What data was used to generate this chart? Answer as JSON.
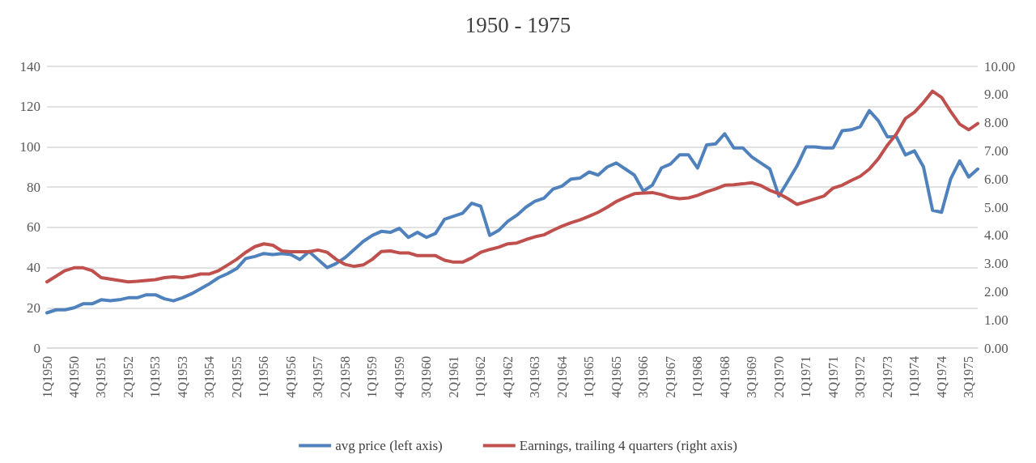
{
  "chart_data": {
    "type": "line",
    "title": "1950 - 1975",
    "categories": [
      "1Q1950",
      null,
      null,
      "4Q1950",
      null,
      null,
      "3Q1951",
      null,
      null,
      "2Q1952",
      null,
      null,
      "1Q1953",
      null,
      null,
      "4Q1953",
      null,
      null,
      "3Q1954",
      null,
      null,
      "2Q1955",
      null,
      null,
      "1Q1956",
      null,
      null,
      "4Q1956",
      null,
      null,
      "3Q1957",
      null,
      null,
      "2Q1958",
      null,
      null,
      "1Q1959",
      null,
      null,
      "4Q1959",
      null,
      null,
      "3Q1960",
      null,
      null,
      "2Q1961",
      null,
      null,
      "1Q1962",
      null,
      null,
      "4Q1962",
      null,
      null,
      "3Q1963",
      null,
      null,
      "2Q1964",
      null,
      null,
      "1Q1965",
      null,
      null,
      "4Q1965",
      null,
      null,
      "3Q1966",
      null,
      null,
      "2Q1967",
      null,
      null,
      "1Q1968",
      null,
      null,
      "4Q1968",
      null,
      null,
      "3Q1969",
      null,
      null,
      "2Q1970",
      null,
      null,
      "1Q1971",
      null,
      null,
      "4Q1971",
      null,
      null,
      "3Q1972",
      null,
      null,
      "2Q1973",
      null,
      null,
      "1Q1974",
      null,
      null,
      "4Q1974",
      null,
      null,
      "3Q1975",
      null
    ],
    "series": [
      {
        "name": "avg price (left axis)",
        "color": "#4f81bd",
        "values": [
          17.5,
          19,
          19,
          20,
          22,
          22,
          24,
          23.5,
          24,
          25,
          25,
          26.5,
          26.5,
          24.5,
          23.5,
          25,
          27,
          29.5,
          32,
          35,
          37,
          39.5,
          44.5,
          45.5,
          47,
          46.5,
          47,
          46.5,
          44,
          48,
          44,
          40,
          42,
          45,
          49,
          53,
          56,
          58,
          57.5,
          59.5,
          55,
          57.5,
          55,
          57,
          64,
          65.5,
          67,
          72,
          70.5,
          56,
          58.5,
          63,
          66,
          70,
          73,
          74.5,
          79,
          80.5,
          84,
          84.5,
          87.5,
          86,
          90,
          92,
          89,
          86,
          78,
          81,
          89.5,
          91.5,
          96,
          96,
          89.5,
          101,
          101.5,
          106.5,
          99.5,
          99.5,
          95,
          92,
          89,
          75.5,
          83,
          90.5,
          100,
          100,
          99.5,
          99.5,
          108,
          108.5,
          110,
          118,
          113,
          105,
          105,
          96,
          98,
          90,
          68.5,
          67.5,
          84,
          93,
          85,
          89
        ]
      },
      {
        "name": "Earnings, trailing 4 quarters (right axis)",
        "color": "#c0504d",
        "axis": "y2",
        "values": [
          2.35,
          2.55,
          2.75,
          2.85,
          2.85,
          2.75,
          2.5,
          2.45,
          2.4,
          2.35,
          2.37,
          2.4,
          2.43,
          2.5,
          2.53,
          2.5,
          2.55,
          2.63,
          2.63,
          2.75,
          2.95,
          3.15,
          3.4,
          3.6,
          3.7,
          3.65,
          3.45,
          3.42,
          3.42,
          3.42,
          3.48,
          3.4,
          3.15,
          2.97,
          2.9,
          2.95,
          3.15,
          3.43,
          3.45,
          3.38,
          3.38,
          3.28,
          3.28,
          3.28,
          3.12,
          3.05,
          3.05,
          3.2,
          3.4,
          3.5,
          3.58,
          3.7,
          3.73,
          3.85,
          3.95,
          4.02,
          4.18,
          4.33,
          4.45,
          4.55,
          4.68,
          4.82,
          5.0,
          5.2,
          5.35,
          5.48,
          5.5,
          5.52,
          5.45,
          5.35,
          5.3,
          5.33,
          5.42,
          5.55,
          5.65,
          5.78,
          5.8,
          5.83,
          5.87,
          5.77,
          5.6,
          5.48,
          5.3,
          5.1,
          5.2,
          5.3,
          5.4,
          5.68,
          5.78,
          5.95,
          6.1,
          6.35,
          6.72,
          7.2,
          7.6,
          8.15,
          8.37,
          8.72,
          9.12,
          8.9,
          8.4,
          7.95,
          7.75,
          7.97
        ]
      }
    ],
    "ylim": [
      0,
      140
    ],
    "yticks": [
      0,
      20,
      40,
      60,
      80,
      100,
      120,
      140
    ],
    "y2lim": [
      0,
      10
    ],
    "y2ticks": [
      {
        "value": 0,
        "label": "0.00"
      },
      {
        "value": 1,
        "label": "1.00"
      },
      {
        "value": 2,
        "label": "2.00"
      },
      {
        "value": 3,
        "label": "3.00"
      },
      {
        "value": 4,
        "label": "4.00"
      },
      {
        "value": 5,
        "label": "5.00"
      },
      {
        "value": 6,
        "label": "6.00"
      },
      {
        "value": 7,
        "label": "7.00"
      },
      {
        "value": 8,
        "label": "8.00"
      },
      {
        "value": 9,
        "label": "9.00"
      },
      {
        "value": 10,
        "label": "10.00"
      }
    ],
    "grid": "y",
    "legend": "bottom",
    "marker": "none",
    "line_style": "solid"
  }
}
